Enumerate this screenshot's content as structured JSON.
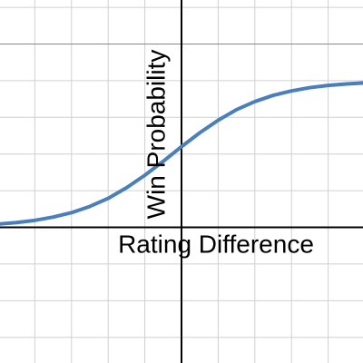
{
  "chart_data": {
    "type": "line",
    "xlabel": "Rating Difference",
    "ylabel": "Win Probability",
    "x": [
      -5,
      -4.5,
      -4,
      -3.5,
      -3,
      -2.5,
      -2,
      -1.5,
      -1,
      -0.5,
      0,
      0.5,
      1,
      1.5,
      2,
      2.5,
      3,
      3.5,
      4,
      4.5,
      5
    ],
    "series": [
      {
        "color": "#4a7fbd",
        "values": [
          0.09,
          0.13,
          0.19,
          0.28,
          0.4,
          0.57,
          0.79,
          1.08,
          1.42,
          1.8,
          2.2,
          2.58,
          2.92,
          3.21,
          3.43,
          3.6,
          3.72,
          3.81,
          3.87,
          3.91,
          3.94
        ]
      }
    ],
    "xlim": [
      -4.95,
      4.95
    ],
    "ylim": [
      -3.7,
      6.2
    ],
    "xticks": [
      -4,
      -3,
      -2,
      -1,
      1,
      2,
      3,
      4
    ],
    "yticks": [
      -3,
      -2,
      -1,
      1,
      2,
      3,
      4,
      5,
      6
    ],
    "grid": true
  }
}
